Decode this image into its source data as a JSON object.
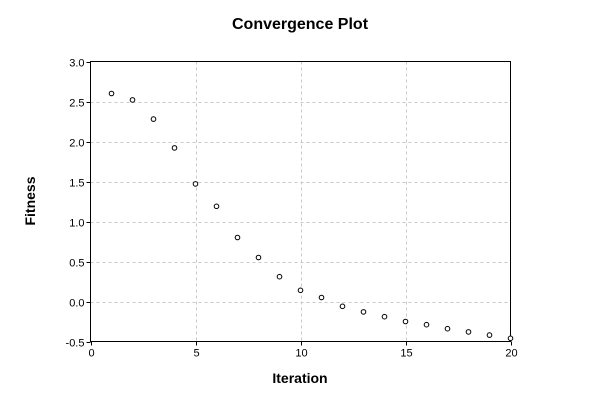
{
  "chart_data": {
    "type": "scatter",
    "title": "Convergence Plot",
    "xlabel": "Iteration",
    "ylabel": "Fitness",
    "xlim": [
      0,
      20
    ],
    "ylim": [
      -0.5,
      3.0
    ],
    "xticks": [
      0,
      5,
      10,
      15,
      20
    ],
    "xtick_labels": [
      "0",
      "5",
      "10",
      "15",
      "20"
    ],
    "yticks": [
      -0.5,
      0.0,
      0.5,
      1.0,
      1.5,
      2.0,
      2.5,
      3.0
    ],
    "ytick_labels": [
      "-0.5",
      "0.0",
      "0.5",
      "1.0",
      "1.5",
      "2.0",
      "2.5",
      "3.0"
    ],
    "grid": true,
    "series": [
      {
        "x": [
          1,
          2,
          3,
          4,
          5,
          6,
          7,
          8,
          9,
          10,
          11,
          12,
          13,
          14,
          15,
          16,
          17,
          18,
          19,
          20
        ],
        "y": [
          2.6,
          2.52,
          2.28,
          1.92,
          1.47,
          1.19,
          0.8,
          0.55,
          0.31,
          0.14,
          0.05,
          -0.06,
          -0.13,
          -0.19,
          -0.25,
          -0.29,
          -0.34,
          -0.38,
          -0.42,
          -0.46
        ]
      }
    ],
    "colors": {
      "marker_edge": "#000000",
      "marker_fill": "#ffffff",
      "grid": "#c8c8c8"
    }
  }
}
